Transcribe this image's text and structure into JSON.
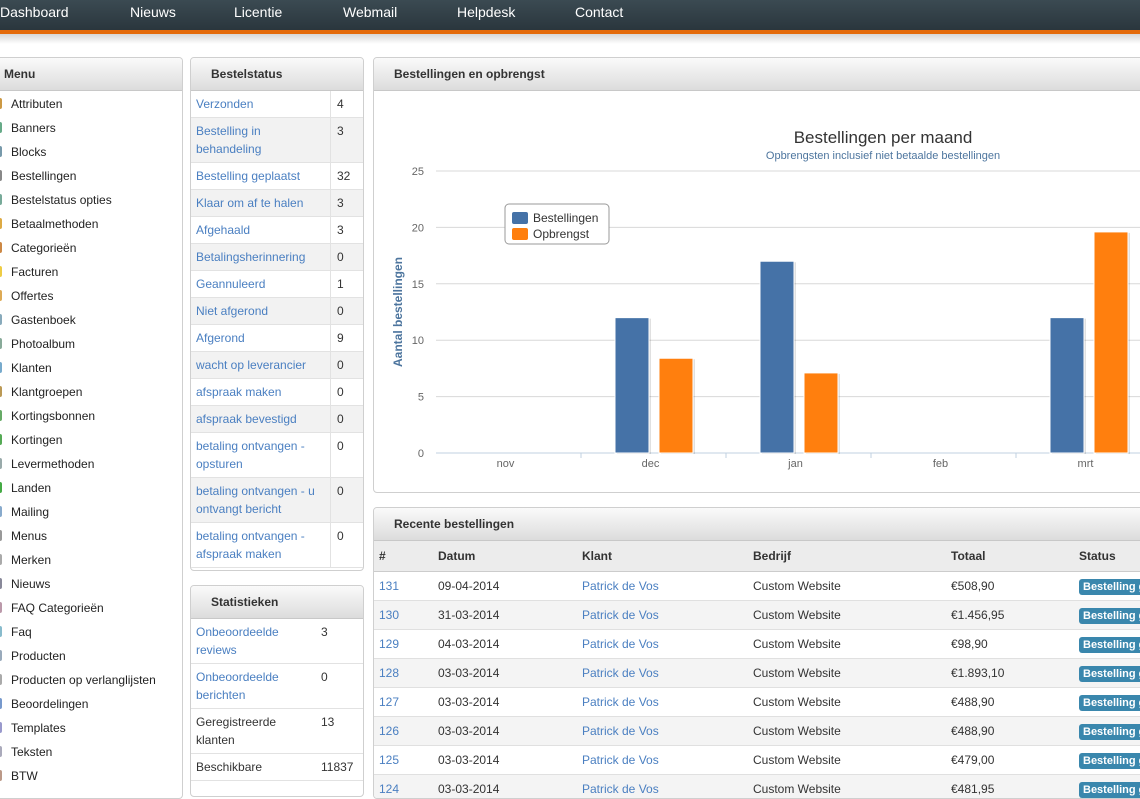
{
  "nav": [
    "Dashboard",
    "Nieuws",
    "Licentie",
    "Webmail",
    "Helpdesk",
    "Contact"
  ],
  "menu": {
    "title": "Menu",
    "items": [
      "Attributen",
      "Banners",
      "Blocks",
      "Bestellingen",
      "Bestelstatus opties",
      "Betaalmethoden",
      "Categorieën",
      "Facturen",
      "Offertes",
      "Gastenboek",
      "Photoalbum",
      "Klanten",
      "Klantgroepen",
      "Kortingsbonnen",
      "Kortingen",
      "Levermethoden",
      "Landen",
      "Mailing",
      "Menus",
      "Merken",
      "Nieuws",
      "FAQ Categorieën",
      "Faq",
      "Producten",
      "Producten op verlanglijsten",
      "Beoordelingen",
      "Templates",
      "Teksten",
      "BTW"
    ]
  },
  "bestelstatus": {
    "title": "Bestelstatus",
    "rows": [
      {
        "label": "Verzonden",
        "count": "4"
      },
      {
        "label": "Bestelling in behandeling",
        "count": "3"
      },
      {
        "label": "Bestelling geplaatst",
        "count": "32"
      },
      {
        "label": "Klaar om af te halen",
        "count": "3"
      },
      {
        "label": "Afgehaald",
        "count": "3"
      },
      {
        "label": "Betalingsherinnering",
        "count": "0"
      },
      {
        "label": "Geannuleerd",
        "count": "1"
      },
      {
        "label": "Niet afgerond",
        "count": "0"
      },
      {
        "label": "Afgerond",
        "count": "9"
      },
      {
        "label": "wacht op leverancier",
        "count": "0"
      },
      {
        "label": "afspraak maken",
        "count": "0"
      },
      {
        "label": "afspraak bevestigd",
        "count": "0"
      },
      {
        "label": "betaling ontvangen - opsturen",
        "count": "0"
      },
      {
        "label": "betaling ontvangen - u ontvangt bericht",
        "count": "0"
      },
      {
        "label": "betaling ontvangen - afspraak maken",
        "count": "0"
      }
    ]
  },
  "statistieken": {
    "title": "Statistieken",
    "rows": [
      {
        "label": "Onbeoordeelde reviews",
        "count": "3",
        "link": true
      },
      {
        "label": "Onbeoordeelde berichten",
        "count": "0",
        "link": true
      },
      {
        "label": "Geregistreerde klanten",
        "count": "13",
        "link": false
      },
      {
        "label": "Beschikbare",
        "count": "11837",
        "link": false
      }
    ]
  },
  "chart_panel": {
    "title": "Bestellingen en opbrengst"
  },
  "chart_data": {
    "type": "bar",
    "title": "Bestellingen per maand",
    "subtitle": "Opbrengsten inclusief niet betaalde bestellingen",
    "ylabel": "Aantal bestellingen",
    "xlabel": "",
    "ylim": [
      0,
      25
    ],
    "yticks": [
      0,
      5,
      10,
      15,
      20,
      25
    ],
    "categories": [
      "nov",
      "dec",
      "jan",
      "feb",
      "mrt"
    ],
    "legend_position": "top-left",
    "series": [
      {
        "name": "Bestellingen",
        "color": "#4572a7",
        "values": [
          0,
          12,
          17,
          0,
          12
        ]
      },
      {
        "name": "Opbrengst",
        "color": "#ff7f0e",
        "values": [
          0,
          8.4,
          7.1,
          0,
          19.6
        ]
      }
    ]
  },
  "recent": {
    "title": "Recente bestellingen",
    "columns": [
      "#",
      "Datum",
      "Klant",
      "Bedrijf",
      "Totaal",
      "Status"
    ],
    "rows": [
      {
        "id": "131",
        "date": "09-04-2014",
        "client": "Patrick de Vos",
        "company": "Custom Website",
        "total": "€508,90",
        "status": "Bestelling g"
      },
      {
        "id": "130",
        "date": "31-03-2014",
        "client": "Patrick de Vos",
        "company": "Custom Website",
        "total": "€1.456,95",
        "status": "Bestelling g"
      },
      {
        "id": "129",
        "date": "04-03-2014",
        "client": "Patrick de Vos",
        "company": "Custom Website",
        "total": "€98,90",
        "status": "Bestelling g"
      },
      {
        "id": "128",
        "date": "03-03-2014",
        "client": "Patrick de Vos",
        "company": "Custom Website",
        "total": "€1.893,10",
        "status": "Bestelling g"
      },
      {
        "id": "127",
        "date": "03-03-2014",
        "client": "Patrick de Vos",
        "company": "Custom Website",
        "total": "€488,90",
        "status": "Bestelling g"
      },
      {
        "id": "126",
        "date": "03-03-2014",
        "client": "Patrick de Vos",
        "company": "Custom Website",
        "total": "€488,90",
        "status": "Bestelling g"
      },
      {
        "id": "125",
        "date": "03-03-2014",
        "client": "Patrick de Vos",
        "company": "Custom Website",
        "total": "€479,00",
        "status": "Bestelling g"
      },
      {
        "id": "124",
        "date": "03-03-2014",
        "client": "Patrick de Vos",
        "company": "Custom Website",
        "total": "€481,95",
        "status": "Bestelling g"
      }
    ]
  }
}
